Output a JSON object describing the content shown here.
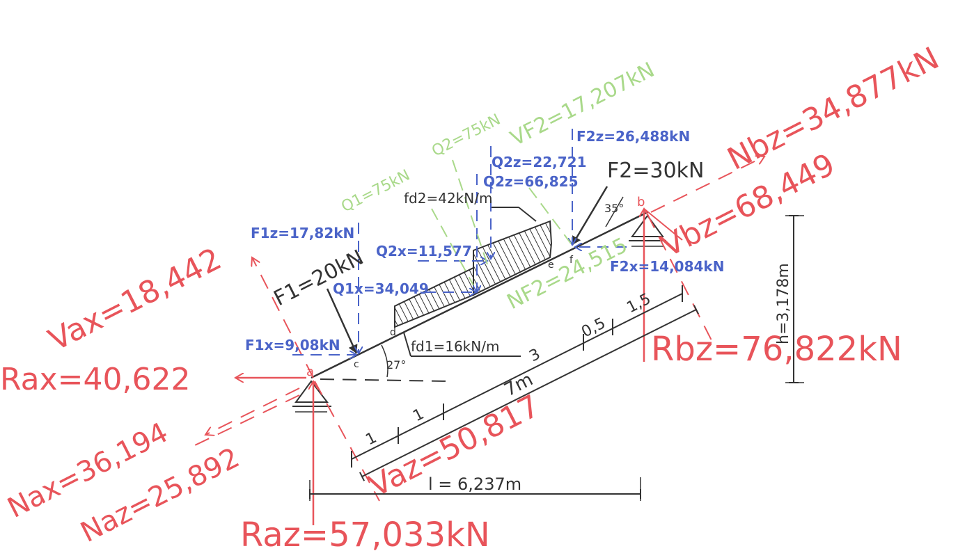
{
  "colors": {
    "reaction": "#e8545a",
    "component": "#4a63c8",
    "distributed": "#a9d98a",
    "structure": "#333333"
  },
  "labels": {
    "Rax": "Rax=40,622",
    "Raz": "Raz=57,033kN",
    "Rbz": "Rbz=76,822kN",
    "Nax": "Nax=36,194",
    "Naz": "Naz=25,892",
    "Vax": "Vax=18,442",
    "Vaz": "Vaz=50,817",
    "Nbz": "Nbz=34,877kN",
    "Vbz": "Vbz=68,449",
    "F1": "F1=20kN",
    "F2": "F2=30kN",
    "F1x": "F1x=9,08kN",
    "F1z": "F1z=17,82kN",
    "F2x": "F2x=14,084kN",
    "F2z": "F2z=26,488kN",
    "Q1x": "Q1x=34,049",
    "Q2x": "Q2x=11,577",
    "Q2z_upper": "Q2z=22,721",
    "Q2z_lower": "Q2z=66,825",
    "Q1": "Q1=75kN",
    "Q2": "Q2=75kN",
    "VF2": "VF2=17,207kN",
    "NF2": "NF2=24,515",
    "fd1": "fd1=16kN/m",
    "fd2": "fd2=42kN/m",
    "span": "l = 6,237m",
    "height": "h=3,178m",
    "length": "7m",
    "seg_1a": "1",
    "seg_1b": "1",
    "seg_3": "3",
    "seg_05": "0,5",
    "seg_15": "1,5",
    "angle_a": "27°",
    "angle_b": "35°",
    "pt_a": "a",
    "pt_b": "b",
    "pt_c": "c",
    "pt_d": "d",
    "pt_e": "e",
    "pt_f": "f"
  }
}
